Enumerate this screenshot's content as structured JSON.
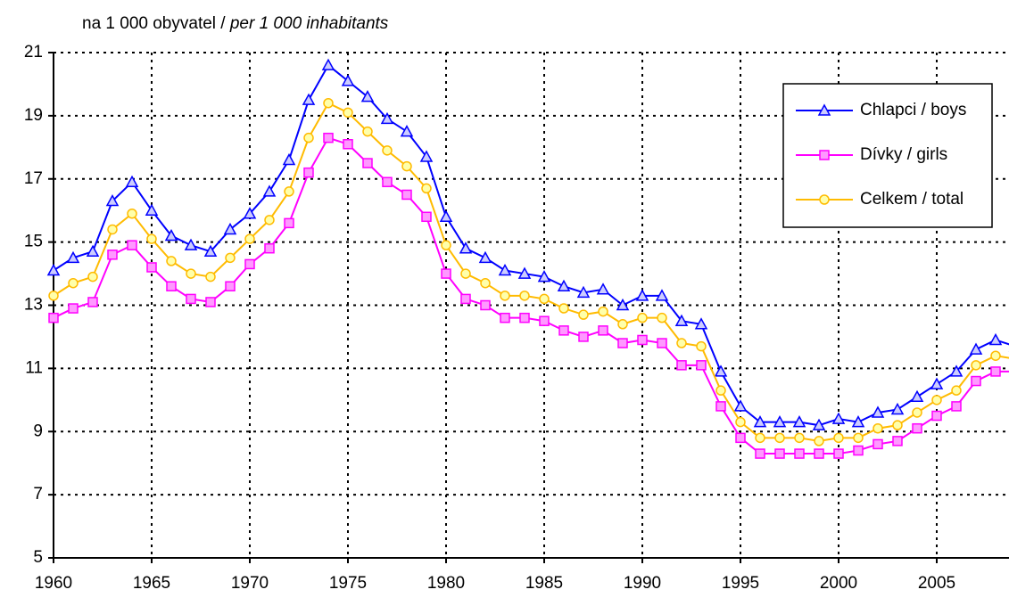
{
  "chart_data": {
    "type": "line",
    "unit_label": [
      "na 1 000 obyvatel / ",
      "per 1 000 inhabitants"
    ],
    "x": [
      1960,
      1961,
      1962,
      1963,
      1964,
      1965,
      1966,
      1967,
      1968,
      1969,
      1970,
      1971,
      1972,
      1973,
      1974,
      1975,
      1976,
      1977,
      1978,
      1979,
      1980,
      1981,
      1982,
      1983,
      1984,
      1985,
      1986,
      1987,
      1988,
      1989,
      1990,
      1991,
      1992,
      1993,
      1994,
      1995,
      1996,
      1997,
      1998,
      1999,
      2000,
      2001,
      2002,
      2003,
      2004,
      2005,
      2006,
      2007,
      2008,
      2009
    ],
    "series": [
      {
        "name": "Chlapci / boys",
        "color": "#0000ff",
        "marker": "triangle",
        "marker_fill": "#ccccff",
        "values": [
          14.1,
          14.5,
          14.7,
          16.3,
          16.9,
          16.0,
          15.2,
          14.9,
          14.7,
          15.4,
          15.9,
          16.6,
          17.6,
          19.5,
          20.6,
          20.1,
          19.6,
          18.9,
          18.5,
          17.7,
          15.8,
          14.8,
          14.5,
          14.1,
          14.0,
          13.9,
          13.6,
          13.4,
          13.5,
          13.0,
          13.3,
          13.3,
          12.5,
          12.4,
          10.9,
          9.8,
          9.3,
          9.3,
          9.3,
          9.2,
          9.4,
          9.3,
          9.6,
          9.7,
          10.1,
          10.5,
          10.9,
          11.6,
          11.9,
          11.7
        ]
      },
      {
        "name": "Dívky / girls",
        "color": "#ff00ff",
        "marker": "square",
        "marker_fill": "#ff99ff",
        "values": [
          12.6,
          12.9,
          13.1,
          14.6,
          14.9,
          14.2,
          13.6,
          13.2,
          13.1,
          13.6,
          14.3,
          14.8,
          15.6,
          17.2,
          18.3,
          18.1,
          17.5,
          16.9,
          16.5,
          15.8,
          14.0,
          13.2,
          13.0,
          12.6,
          12.6,
          12.5,
          12.2,
          12.0,
          12.2,
          11.8,
          11.9,
          11.8,
          11.1,
          11.1,
          9.8,
          8.8,
          8.3,
          8.3,
          8.3,
          8.3,
          8.3,
          8.4,
          8.6,
          8.7,
          9.1,
          9.5,
          9.8,
          10.6,
          10.9,
          10.9
        ]
      },
      {
        "name": "Celkem / total",
        "color": "#ffbb00",
        "marker": "circle",
        "marker_fill": "#ffffaa",
        "values": [
          13.3,
          13.7,
          13.9,
          15.4,
          15.9,
          15.1,
          14.4,
          14.0,
          13.9,
          14.5,
          15.1,
          15.7,
          16.6,
          18.3,
          19.4,
          19.1,
          18.5,
          17.9,
          17.4,
          16.7,
          14.9,
          14.0,
          13.7,
          13.3,
          13.3,
          13.2,
          12.9,
          12.7,
          12.8,
          12.4,
          12.6,
          12.6,
          11.8,
          11.7,
          10.3,
          9.3,
          8.8,
          8.8,
          8.8,
          8.7,
          8.8,
          8.8,
          9.1,
          9.2,
          9.6,
          10.0,
          10.3,
          11.1,
          11.4,
          11.3
        ]
      }
    ],
    "xlim": [
      1960,
      2009
    ],
    "xticks": [
      1960,
      1965,
      1970,
      1975,
      1980,
      1985,
      1990,
      1995,
      2000,
      2005
    ],
    "ylim": [
      5,
      21
    ],
    "yticks": [
      5,
      7,
      9,
      11,
      13,
      15,
      17,
      19,
      21
    ],
    "grid": true,
    "legend": "upper right"
  }
}
